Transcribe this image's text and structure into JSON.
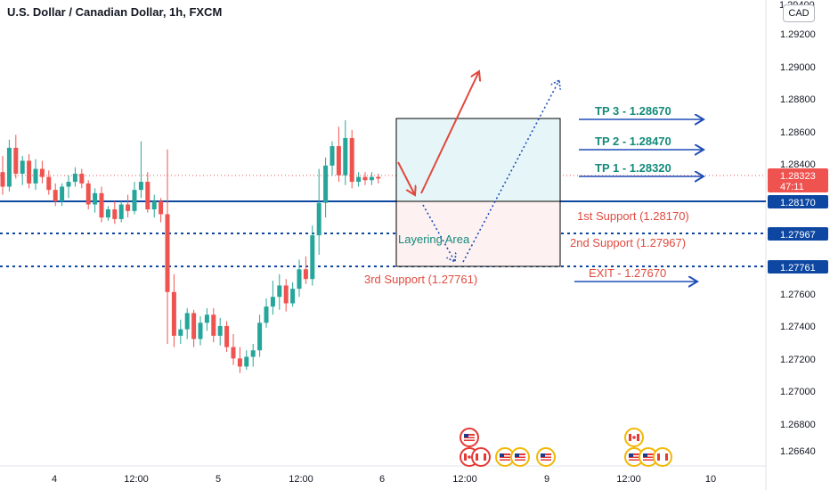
{
  "header": {
    "title": "U.S. Dollar / Canadian Dollar, 1h, FXCM",
    "currency": "CAD",
    "top_tick_partial": "1.29400"
  },
  "price_axis": {
    "ticks": [
      "1.29200",
      "1.29000",
      "1.28800",
      "1.28600",
      "1.28400",
      "1.27600",
      "1.27400",
      "1.27200",
      "1.27000",
      "1.26800",
      "1.26640"
    ],
    "current_price": "1.28323",
    "countdown": "47:11",
    "level_labels": [
      "1.28170",
      "1.27967",
      "1.27761"
    ],
    "colors": {
      "bear": "#ef5350",
      "bull": "#26a69a",
      "blue": "#0d47a1",
      "arrow_blue": "#1e4db7",
      "red_text": "#e04a3f",
      "teal_text": "#138a7a"
    }
  },
  "time_axis": {
    "labels": [
      "4",
      "12:00",
      "5",
      "12:00",
      "6",
      "12:00",
      "9",
      "12:00",
      "10"
    ]
  },
  "annotations": {
    "tp3": "TP 3 - 1.28670",
    "tp2": "TP 2 - 1.28470",
    "tp1": "TP 1 - 1.28320",
    "support1": "1st Support (1.28170)",
    "support2": "2nd Support (1.27967)",
    "support3": "3rd Support (1.27761)",
    "exit": "EXIT - 1.27670",
    "layering": "Layering Area"
  },
  "chart_data": {
    "type": "candlestick",
    "title": "U.S. Dollar / Canadian Dollar, 1h, FXCM",
    "y_axis_range": [
      1.2662,
      1.2942
    ],
    "horizontal_levels": [
      1.2817,
      1.27967,
      1.27761
    ],
    "current_price": 1.28323,
    "candles": [
      [
        1.2836,
        1.2846,
        1.2822,
        1.2827
      ],
      [
        1.2827,
        1.2856,
        1.2824,
        1.2851
      ],
      [
        1.2851,
        1.2859,
        1.2832,
        1.2835
      ],
      [
        1.2835,
        1.2846,
        1.2828,
        1.2843
      ],
      [
        1.2843,
        1.2847,
        1.2826,
        1.2829
      ],
      [
        1.2829,
        1.2844,
        1.2825,
        1.2838
      ],
      [
        1.2838,
        1.2843,
        1.2829,
        1.2833
      ],
      [
        1.2833,
        1.2837,
        1.2822,
        1.2825
      ],
      [
        1.2825,
        1.2829,
        1.2815,
        1.2818
      ],
      [
        1.2818,
        1.2829,
        1.2815,
        1.2827
      ],
      [
        1.2827,
        1.2834,
        1.282,
        1.283
      ],
      [
        1.283,
        1.2839,
        1.2827,
        1.2835
      ],
      [
        1.2835,
        1.2838,
        1.2826,
        1.2829
      ],
      [
        1.2829,
        1.2831,
        1.2813,
        1.2816
      ],
      [
        1.2816,
        1.2826,
        1.2811,
        1.2823
      ],
      [
        1.2823,
        1.2827,
        1.2805,
        1.2808
      ],
      [
        1.2808,
        1.2815,
        1.2806,
        1.2813
      ],
      [
        1.2813,
        1.2818,
        1.2804,
        1.2807
      ],
      [
        1.2807,
        1.2818,
        1.2805,
        1.2816
      ],
      [
        1.2816,
        1.2822,
        1.2808,
        1.2812
      ],
      [
        1.2812,
        1.283,
        1.281,
        1.2825
      ],
      [
        1.2825,
        1.2855,
        1.282,
        1.283
      ],
      [
        1.283,
        1.2836,
        1.2811,
        1.2813
      ],
      [
        1.2813,
        1.2822,
        1.2808,
        1.2818
      ],
      [
        1.2818,
        1.282,
        1.2805,
        1.281
      ],
      [
        1.281,
        1.285,
        1.273,
        1.2762
      ],
      [
        1.2762,
        1.2773,
        1.2728,
        1.2735
      ],
      [
        1.2735,
        1.2745,
        1.273,
        1.2739
      ],
      [
        1.2739,
        1.2752,
        1.2733,
        1.2749
      ],
      [
        1.2749,
        1.2751,
        1.2728,
        1.2733
      ],
      [
        1.2733,
        1.2747,
        1.2729,
        1.2743
      ],
      [
        1.2743,
        1.2752,
        1.2738,
        1.2748
      ],
      [
        1.2748,
        1.2752,
        1.2731,
        1.2735
      ],
      [
        1.2735,
        1.2746,
        1.2729,
        1.2741
      ],
      [
        1.2741,
        1.2744,
        1.2725,
        1.2728
      ],
      [
        1.2728,
        1.2736,
        1.2717,
        1.2721
      ],
      [
        1.2721,
        1.2728,
        1.2712,
        1.2716
      ],
      [
        1.2716,
        1.2726,
        1.2714,
        1.2722
      ],
      [
        1.2722,
        1.273,
        1.2716,
        1.2726
      ],
      [
        1.2726,
        1.2748,
        1.2722,
        1.2743
      ],
      [
        1.2743,
        1.2758,
        1.274,
        1.2753
      ],
      [
        1.2753,
        1.2769,
        1.2748,
        1.2759
      ],
      [
        1.2759,
        1.2773,
        1.2751,
        1.2766
      ],
      [
        1.2766,
        1.277,
        1.275,
        1.2755
      ],
      [
        1.2755,
        1.2768,
        1.2753,
        1.2764
      ],
      [
        1.2764,
        1.2782,
        1.2759,
        1.2776
      ],
      [
        1.2776,
        1.2784,
        1.2767,
        1.277
      ],
      [
        1.277,
        1.2803,
        1.2766,
        1.2797
      ],
      [
        1.2797,
        1.2838,
        1.2785,
        1.2817
      ],
      [
        1.2817,
        1.2845,
        1.2808,
        1.284
      ],
      [
        1.284,
        1.2855,
        1.2834,
        1.2852
      ],
      [
        1.2852,
        1.2864,
        1.283,
        1.2834
      ],
      [
        1.2834,
        1.2868,
        1.2828,
        1.2857
      ],
      [
        1.2857,
        1.2862,
        1.2826,
        1.283
      ],
      [
        1.283,
        1.2836,
        1.2827,
        1.2833
      ],
      [
        1.2833,
        1.2836,
        1.2828,
        1.2831
      ],
      [
        1.2831,
        1.2836,
        1.2828,
        1.2833
      ],
      [
        1.2833,
        1.2835,
        1.2829,
        1.2832
      ]
    ]
  }
}
